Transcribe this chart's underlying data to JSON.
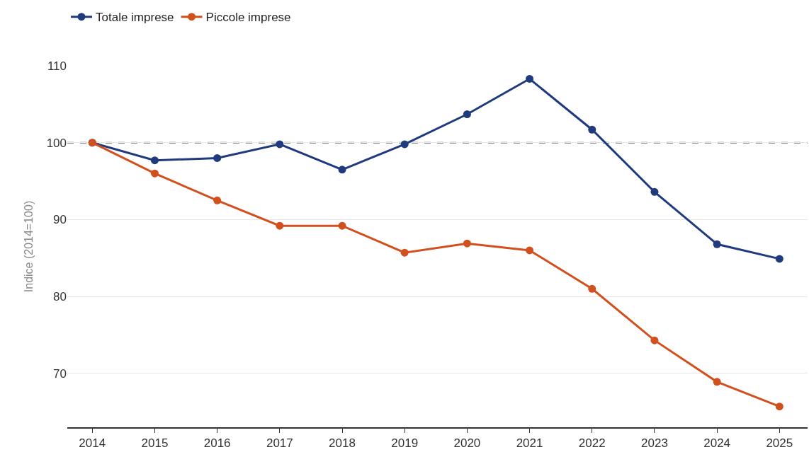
{
  "chart_data": {
    "type": "line",
    "ylabel": "Indice (2014=100)",
    "x": [
      2014,
      2015,
      2016,
      2017,
      2018,
      2019,
      2020,
      2021,
      2022,
      2023,
      2024,
      2025
    ],
    "series": [
      {
        "name": "Totale imprese",
        "color": "#1f3b7e",
        "values": [
          100,
          97.7,
          98.0,
          99.8,
          96.5,
          99.8,
          103.7,
          108.3,
          101.7,
          93.6,
          86.8,
          84.9
        ]
      },
      {
        "name": "Piccole imprese",
        "color": "#d2501e",
        "values": [
          100,
          96.0,
          92.5,
          89.2,
          89.2,
          85.7,
          86.9,
          86.0,
          81.0,
          74.3,
          68.9,
          65.7
        ]
      }
    ],
    "xlim": [
      2013.6,
      2025.45
    ],
    "xticks": [
      2014,
      2015,
      2016,
      2017,
      2018,
      2019,
      2020,
      2021,
      2022,
      2023,
      2024,
      2025
    ],
    "ylim": [
      63,
      110
    ],
    "yticks": [
      70,
      80,
      90,
      100,
      110
    ],
    "ref_lines": [
      {
        "axis": "y",
        "value": 100,
        "color": "#666666",
        "line_style": "dashed"
      }
    ],
    "grid": "y",
    "legend": "top left",
    "marker": "circle",
    "line_style": "solid"
  }
}
